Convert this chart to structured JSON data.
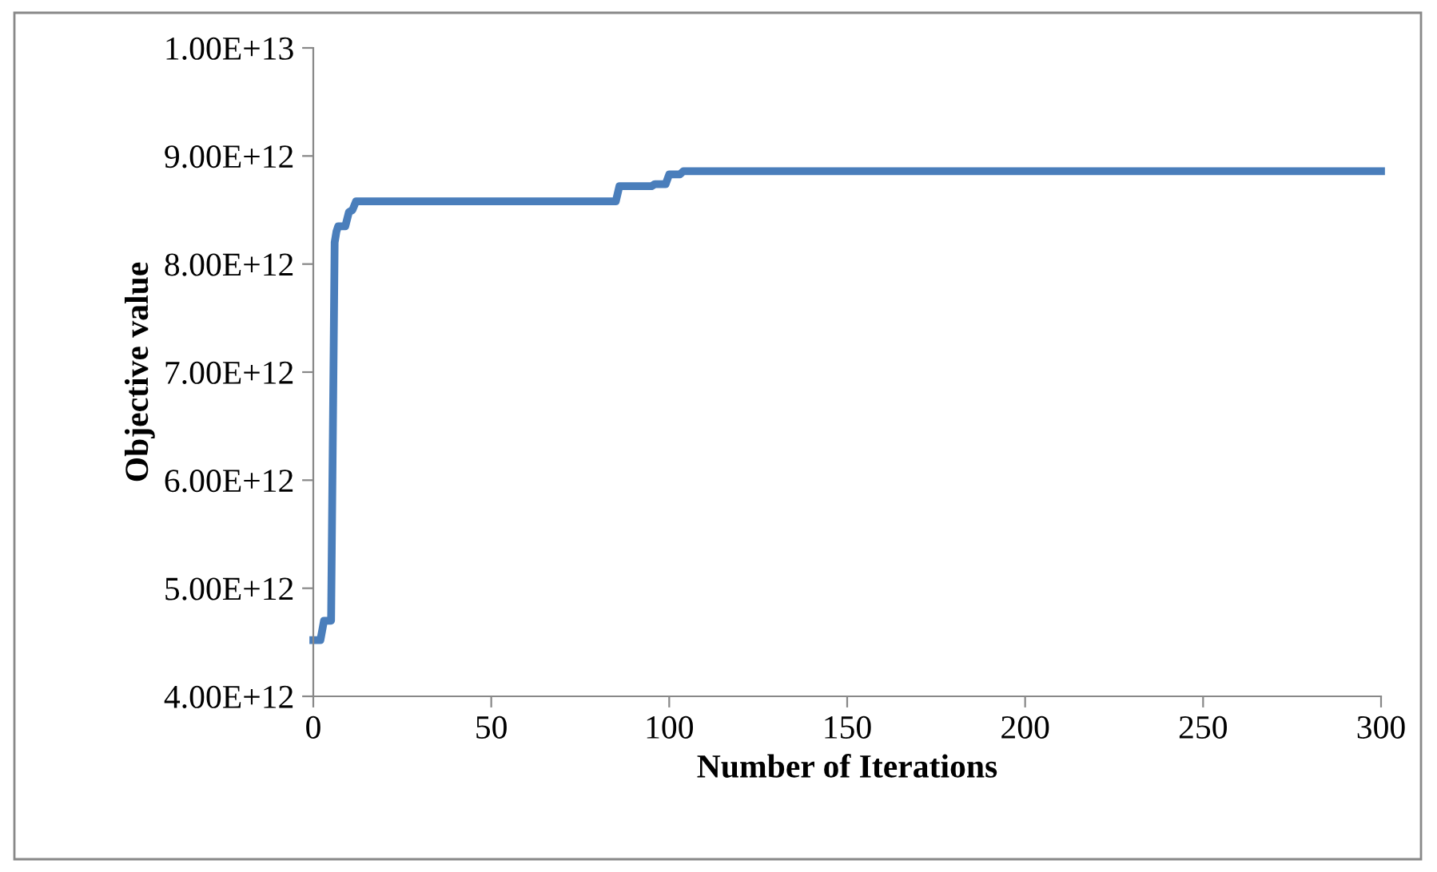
{
  "chart_data": {
    "type": "line",
    "xlabel": "Number of Iterations",
    "ylabel": "Objective value",
    "x": [
      0,
      2,
      3,
      5,
      6,
      6.5,
      7,
      9,
      10,
      11,
      12,
      85,
      86,
      95,
      96,
      99,
      100,
      103,
      104,
      300
    ],
    "series": [
      {
        "color": "#4a7ebb",
        "values": [
          4520000000000.0,
          4520000000000.0,
          4700000000000.0,
          4700000000000.0,
          8200000000000.0,
          8300000000000.0,
          8350000000000.0,
          8350000000000.0,
          8480000000000.0,
          8500000000000.0,
          8580000000000.0,
          8580000000000.0,
          8720000000000.0,
          8720000000000.0,
          8740000000000.0,
          8740000000000.0,
          8830000000000.0,
          8830000000000.0,
          8860000000000.0,
          8860000000000.0
        ]
      }
    ],
    "xlim": [
      0,
      300
    ],
    "xticks": [
      0,
      50,
      100,
      150,
      200,
      250,
      300
    ],
    "ylim": [
      4000000000000.0,
      10000000000000.0
    ],
    "yticks": [
      {
        "value": 4000000000000.0,
        "label": "4.00E+12"
      },
      {
        "value": 5000000000000.0,
        "label": "5.00E+12"
      },
      {
        "value": 6000000000000.0,
        "label": "6.00E+12"
      },
      {
        "value": 7000000000000.0,
        "label": "7.00E+12"
      },
      {
        "value": 8000000000000.0,
        "label": "8.00E+12"
      },
      {
        "value": 9000000000000.0,
        "label": "9.00E+12"
      },
      {
        "value": 10000000000000.0,
        "label": "1.00E+13"
      }
    ],
    "grid": false,
    "legend": false,
    "marker": "none",
    "line_style": "solid"
  }
}
